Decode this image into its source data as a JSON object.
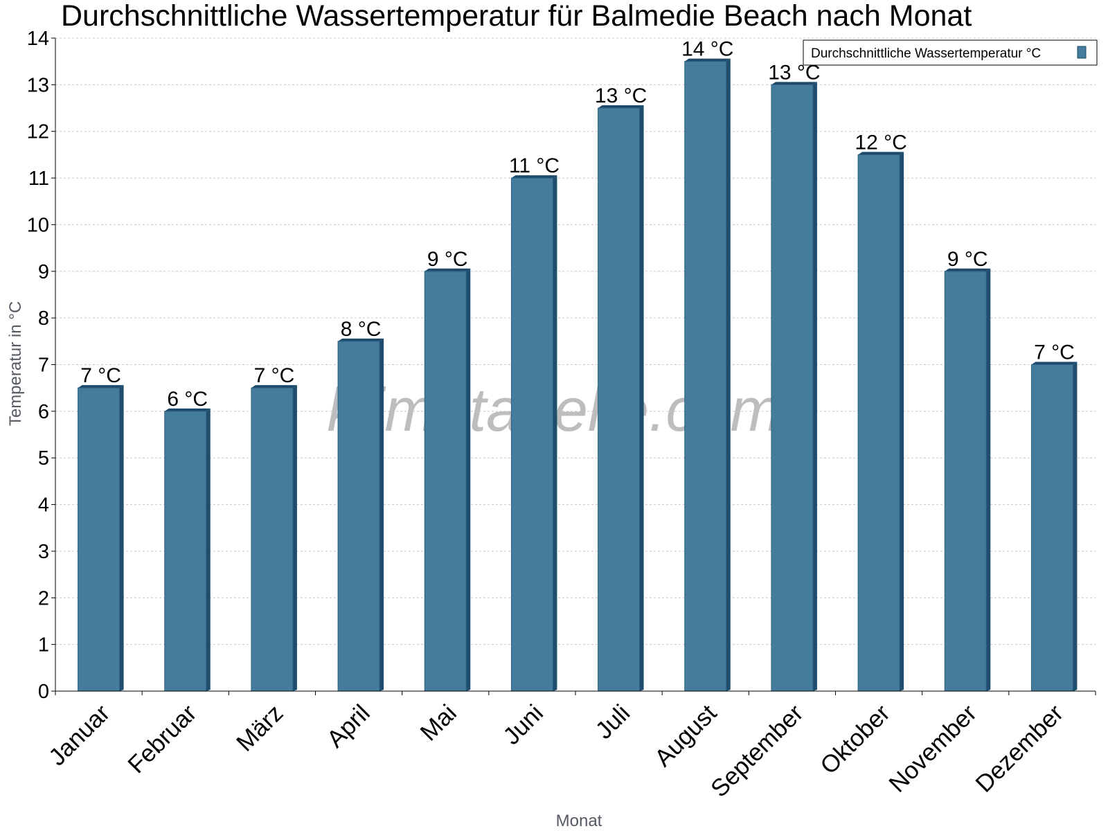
{
  "chart_data": {
    "type": "bar",
    "title": "Durchschnittliche Wassertemperatur für Balmedie Beach nach Monat",
    "xlabel": "Monat",
    "ylabel": "Temperatur in °C",
    "ylim": [
      0,
      14
    ],
    "yticks": [
      0,
      1,
      2,
      3,
      4,
      5,
      6,
      7,
      8,
      9,
      10,
      11,
      12,
      13,
      14
    ],
    "grid": true,
    "legend_position": "top-right",
    "categories": [
      "Januar",
      "Februar",
      "März",
      "April",
      "Mai",
      "Juni",
      "Juli",
      "August",
      "September",
      "Oktober",
      "November",
      "Dezember"
    ],
    "series": [
      {
        "name": "Durchschnittliche Wassertemperatur °C",
        "color": "#457b9d",
        "values": [
          6.5,
          6.0,
          6.5,
          7.5,
          9.0,
          11.0,
          12.5,
          13.5,
          13.0,
          11.5,
          9.0,
          7.0
        ],
        "data_labels": [
          "7 °C",
          "6 °C",
          "7 °C",
          "8 °C",
          "9 °C",
          "11 °C",
          "13 °C",
          "14 °C",
          "13 °C",
          "12 °C",
          "9 °C",
          "7 °C"
        ]
      }
    ],
    "watermark": "klimatabelle.com"
  }
}
